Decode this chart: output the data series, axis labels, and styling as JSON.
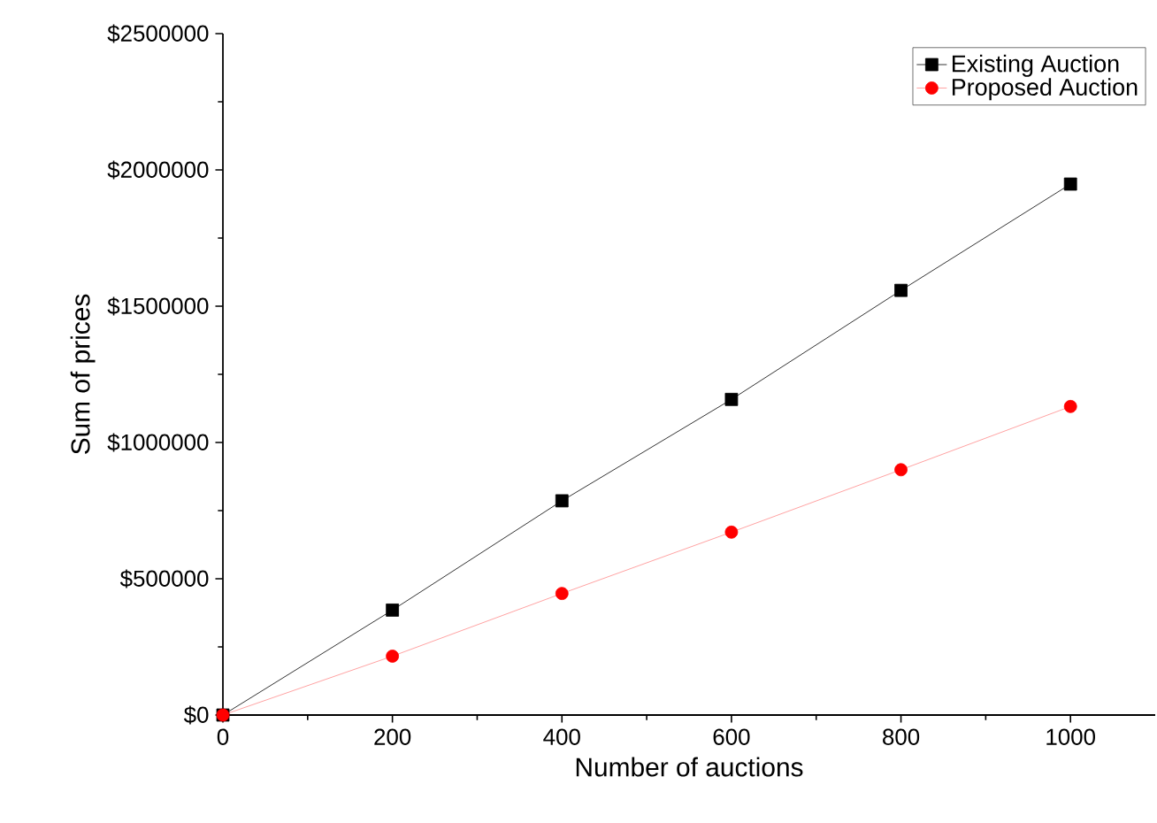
{
  "chart_data": {
    "type": "line",
    "xlabel": "Number of auctions",
    "ylabel": "Sum of prices",
    "x": [
      0,
      200,
      400,
      600,
      800,
      1000
    ],
    "series": [
      {
        "name": "Existing Auction",
        "color": "#000000",
        "marker": "square",
        "values": [
          0,
          385000,
          786000,
          1158000,
          1558000,
          1948000
        ]
      },
      {
        "name": "Proposed Auction",
        "color": "#ff0000",
        "marker": "circle",
        "values": [
          0,
          216000,
          446000,
          671000,
          900000,
          1132000
        ]
      }
    ],
    "xlim": [
      0,
      1100
    ],
    "xticks": [
      0,
      200,
      400,
      600,
      800,
      1000
    ],
    "ylim": [
      0,
      2500000
    ],
    "yticks": [
      {
        "value": 0,
        "label": "$0"
      },
      {
        "value": 500000,
        "label": "$500000"
      },
      {
        "value": 1000000,
        "label": "$1000000"
      },
      {
        "value": 1500000,
        "label": "$1500000"
      },
      {
        "value": 2000000,
        "label": "$2000000"
      },
      {
        "value": 2500000,
        "label": "$2500000"
      }
    ],
    "legend": "top right",
    "grid": false,
    "line_style": "solid"
  }
}
